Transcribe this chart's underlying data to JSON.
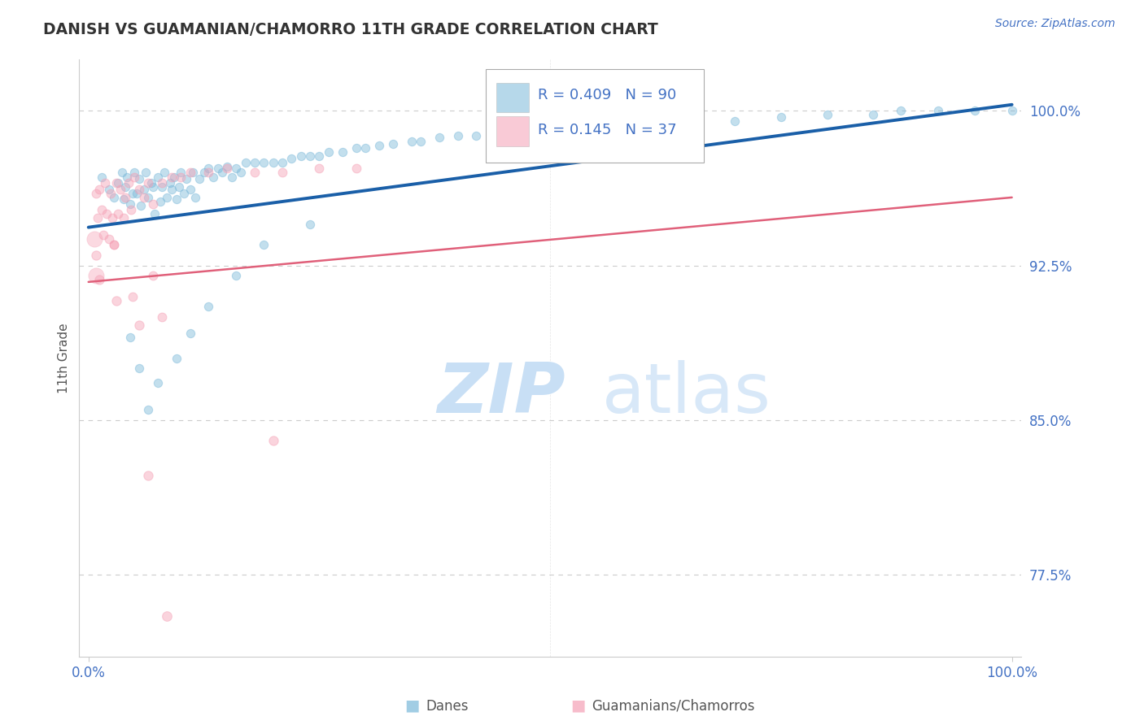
{
  "title": "DANISH VS GUAMANIAN/CHAMORRO 11TH GRADE CORRELATION CHART",
  "source": "Source: ZipAtlas.com",
  "ylabel": "11th Grade",
  "r_blue": 0.409,
  "n_blue": 90,
  "r_pink": 0.145,
  "n_pink": 37,
  "y_ticks": [
    0.775,
    0.85,
    0.925,
    1.0
  ],
  "y_tick_labels": [
    "77.5%",
    "85.0%",
    "92.5%",
    "100.0%"
  ],
  "x_range": [
    0.0,
    1.0
  ],
  "y_range": [
    0.735,
    1.025
  ],
  "title_color": "#333333",
  "blue_color": "#7ab8d9",
  "pink_color": "#f5a0b5",
  "blue_line_color": "#1a5fa8",
  "pink_line_color": "#e0607a",
  "grid_color": "#cccccc",
  "tick_label_color": "#4472c4",
  "watermark_zip_color": "#c8dff5",
  "watermark_atlas_color": "#d8e8f8",
  "blue_line_start_y": 0.9435,
  "blue_line_end_y": 1.003,
  "pink_line_start_y": 0.917,
  "pink_line_end_y": 0.958,
  "blue_points_x": [
    0.014,
    0.022,
    0.028,
    0.032,
    0.036,
    0.038,
    0.04,
    0.042,
    0.045,
    0.048,
    0.05,
    0.052,
    0.055,
    0.057,
    0.06,
    0.062,
    0.065,
    0.068,
    0.07,
    0.072,
    0.075,
    0.078,
    0.08,
    0.082,
    0.085,
    0.088,
    0.09,
    0.093,
    0.095,
    0.098,
    0.1,
    0.103,
    0.106,
    0.11,
    0.113,
    0.116,
    0.12,
    0.125,
    0.13,
    0.135,
    0.14,
    0.145,
    0.15,
    0.155,
    0.16,
    0.165,
    0.17,
    0.18,
    0.19,
    0.2,
    0.21,
    0.22,
    0.23,
    0.24,
    0.25,
    0.26,
    0.275,
    0.29,
    0.3,
    0.315,
    0.33,
    0.35,
    0.36,
    0.38,
    0.4,
    0.42,
    0.44,
    0.5,
    0.52,
    0.55,
    0.6,
    0.65,
    0.7,
    0.75,
    0.8,
    0.85,
    0.88,
    0.92,
    0.96,
    1.0,
    0.24,
    0.19,
    0.16,
    0.13,
    0.11,
    0.095,
    0.075,
    0.065,
    0.055,
    0.045
  ],
  "blue_points_y": [
    0.968,
    0.962,
    0.958,
    0.965,
    0.97,
    0.957,
    0.963,
    0.968,
    0.955,
    0.96,
    0.97,
    0.96,
    0.967,
    0.954,
    0.962,
    0.97,
    0.958,
    0.965,
    0.963,
    0.95,
    0.968,
    0.956,
    0.963,
    0.97,
    0.958,
    0.965,
    0.962,
    0.968,
    0.957,
    0.963,
    0.97,
    0.96,
    0.967,
    0.962,
    0.97,
    0.958,
    0.967,
    0.97,
    0.972,
    0.968,
    0.972,
    0.97,
    0.973,
    0.968,
    0.972,
    0.97,
    0.975,
    0.975,
    0.975,
    0.975,
    0.975,
    0.977,
    0.978,
    0.978,
    0.978,
    0.98,
    0.98,
    0.982,
    0.982,
    0.983,
    0.984,
    0.985,
    0.985,
    0.987,
    0.988,
    0.988,
    0.99,
    0.99,
    0.992,
    0.992,
    0.993,
    0.995,
    0.995,
    0.997,
    0.998,
    0.998,
    1.0,
    1.0,
    1.0,
    1.0,
    0.945,
    0.935,
    0.92,
    0.905,
    0.892,
    0.88,
    0.868,
    0.855,
    0.875,
    0.89
  ],
  "pink_points_x": [
    0.008,
    0.01,
    0.012,
    0.014,
    0.016,
    0.018,
    0.02,
    0.022,
    0.024,
    0.026,
    0.028,
    0.03,
    0.032,
    0.035,
    0.038,
    0.04,
    0.043,
    0.046,
    0.05,
    0.055,
    0.06,
    0.065,
    0.07,
    0.08,
    0.09,
    0.1,
    0.11,
    0.13,
    0.15,
    0.18,
    0.21,
    0.25,
    0.29,
    0.07,
    0.028,
    0.048,
    0.08
  ],
  "pink_points_y": [
    0.96,
    0.948,
    0.962,
    0.952,
    0.94,
    0.965,
    0.95,
    0.938,
    0.96,
    0.948,
    0.935,
    0.965,
    0.95,
    0.962,
    0.948,
    0.958,
    0.965,
    0.952,
    0.968,
    0.962,
    0.958,
    0.965,
    0.955,
    0.965,
    0.968,
    0.968,
    0.97,
    0.97,
    0.972,
    0.97,
    0.97,
    0.972,
    0.972,
    0.92,
    0.935,
    0.91,
    0.9
  ],
  "pink_low_points_x": [
    0.008,
    0.012,
    0.03,
    0.055,
    0.2,
    0.065
  ],
  "pink_low_points_y": [
    0.93,
    0.918,
    0.908,
    0.896,
    0.84,
    0.823
  ],
  "pink_outlier_x": [
    0.085
  ],
  "pink_outlier_y": [
    0.755
  ],
  "point_size": 55
}
